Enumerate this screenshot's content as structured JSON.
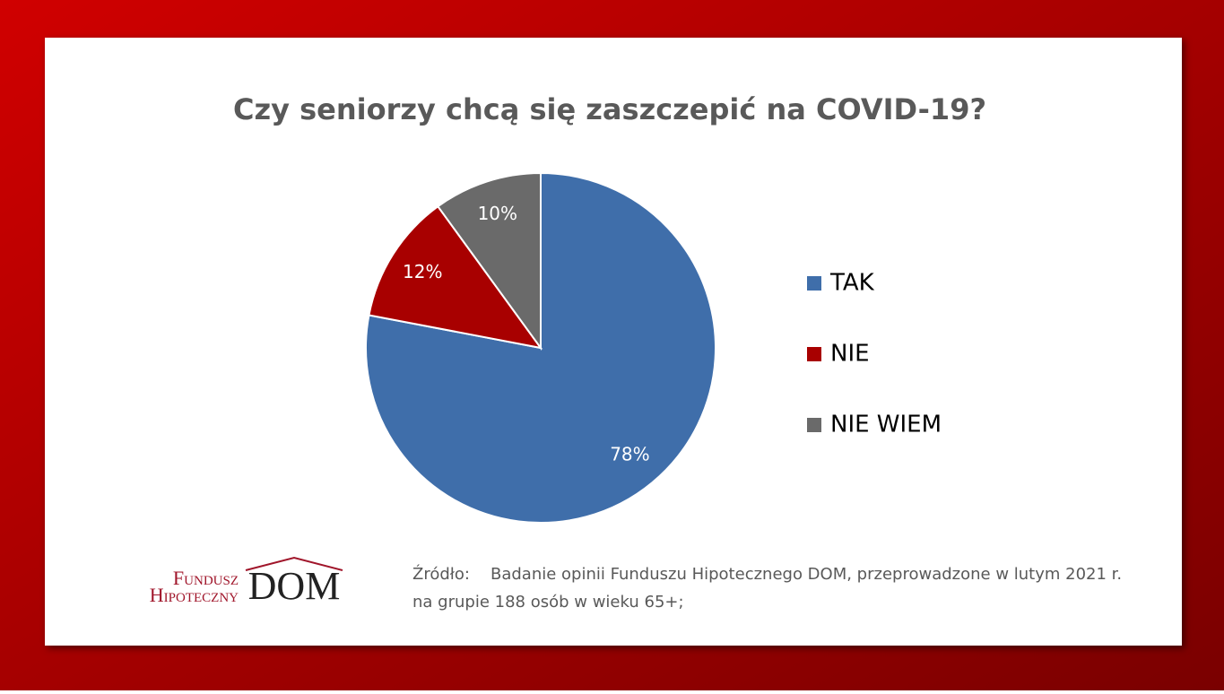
{
  "chart_data": {
    "type": "pie",
    "title": "Czy seniorzy chcą się zaszczepić na COVID-19?",
    "categories": [
      "TAK",
      "NIE",
      "NIE WIEM"
    ],
    "values": [
      78,
      12,
      10
    ],
    "value_labels": [
      "78%",
      "12%",
      "10%"
    ],
    "colors": [
      "#3f6eaa",
      "#a80000",
      "#6a6a6a"
    ],
    "start_angle": 0,
    "direction": "clockwise",
    "legend": "right"
  },
  "source": {
    "label": "Źródło:",
    "line1": "Badanie opinii Funduszu Hipotecznego DOM, przeprowadzone  w lutym 2021 r.",
    "line2": "na grupie 188 osób w wieku 65+;"
  },
  "logo": {
    "line1": "Fundusz",
    "line2": "Hipoteczny",
    "brand": "DOM"
  }
}
